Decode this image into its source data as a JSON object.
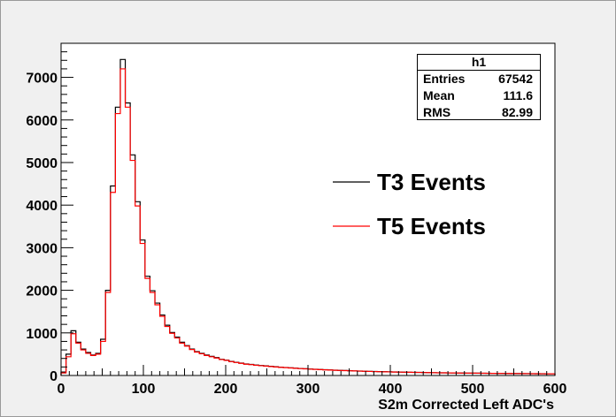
{
  "stats": {
    "title": "h1",
    "rows": [
      {
        "label": "Entries",
        "value": "67542"
      },
      {
        "label": "Mean",
        "value": "111.6"
      },
      {
        "label": "RMS",
        "value": "82.99"
      }
    ]
  },
  "legend": [
    {
      "label": "T3 Events",
      "color": "#000000"
    },
    {
      "label": "T5 Events",
      "color": "#ff0000"
    }
  ],
  "chart_data": {
    "type": "histogram",
    "xlabel": "S2m Corrected Left ADC's",
    "ylabel": "",
    "xlim": [
      0,
      600
    ],
    "ylim": [
      0,
      7800
    ],
    "bin_width": 6,
    "x_ticks": [
      0,
      100,
      200,
      300,
      400,
      500,
      600
    ],
    "y_ticks": [
      0,
      1000,
      2000,
      3000,
      4000,
      5000,
      6000,
      7000
    ],
    "colors": {
      "T3 Events": "#000000",
      "T5 Events": "#ff0000"
    },
    "series": [
      {
        "name": "T3 Events",
        "values": [
          80,
          500,
          1050,
          780,
          620,
          540,
          480,
          520,
          850,
          2000,
          4450,
          6300,
          7420,
          6400,
          5180,
          4080,
          3180,
          2330,
          1990,
          1700,
          1420,
          1180,
          1010,
          900,
          780,
          700,
          620,
          560,
          520,
          480,
          450,
          420,
          380,
          360,
          330,
          310,
          290,
          270,
          260,
          245,
          235,
          225,
          215,
          205,
          195,
          188,
          180,
          172,
          165,
          158,
          152,
          146,
          140,
          135,
          130,
          125,
          120,
          116,
          112,
          108,
          104,
          100,
          97,
          94,
          91,
          88,
          85,
          83,
          80,
          78,
          76,
          74,
          72,
          70,
          68,
          66,
          64,
          63,
          61,
          60,
          58,
          57,
          56,
          55,
          54,
          53,
          52,
          51,
          50,
          49,
          48,
          47,
          46,
          45,
          44,
          43,
          42,
          41,
          40,
          40
        ]
      },
      {
        "name": "T5 Events",
        "values": [
          60,
          440,
          980,
          760,
          600,
          520,
          470,
          500,
          800,
          1950,
          4300,
          6150,
          7200,
          6300,
          5050,
          3980,
          3100,
          2280,
          1950,
          1660,
          1390,
          1150,
          990,
          880,
          760,
          690,
          610,
          550,
          510,
          470,
          440,
          410,
          375,
          355,
          325,
          305,
          285,
          265,
          255,
          240,
          230,
          220,
          210,
          200,
          192,
          184,
          176,
          169,
          162,
          155,
          149,
          143,
          138,
          132,
          127,
          122,
          118,
          114,
          110,
          106,
          102,
          98,
          95,
          92,
          89,
          86,
          84,
          81,
          79,
          77,
          75,
          73,
          71,
          69,
          67,
          65,
          63,
          62,
          60,
          59,
          57,
          56,
          55,
          54,
          53,
          52,
          51,
          50,
          49,
          48,
          47,
          46,
          45,
          44,
          43,
          42,
          41,
          40,
          39,
          39
        ]
      }
    ]
  }
}
